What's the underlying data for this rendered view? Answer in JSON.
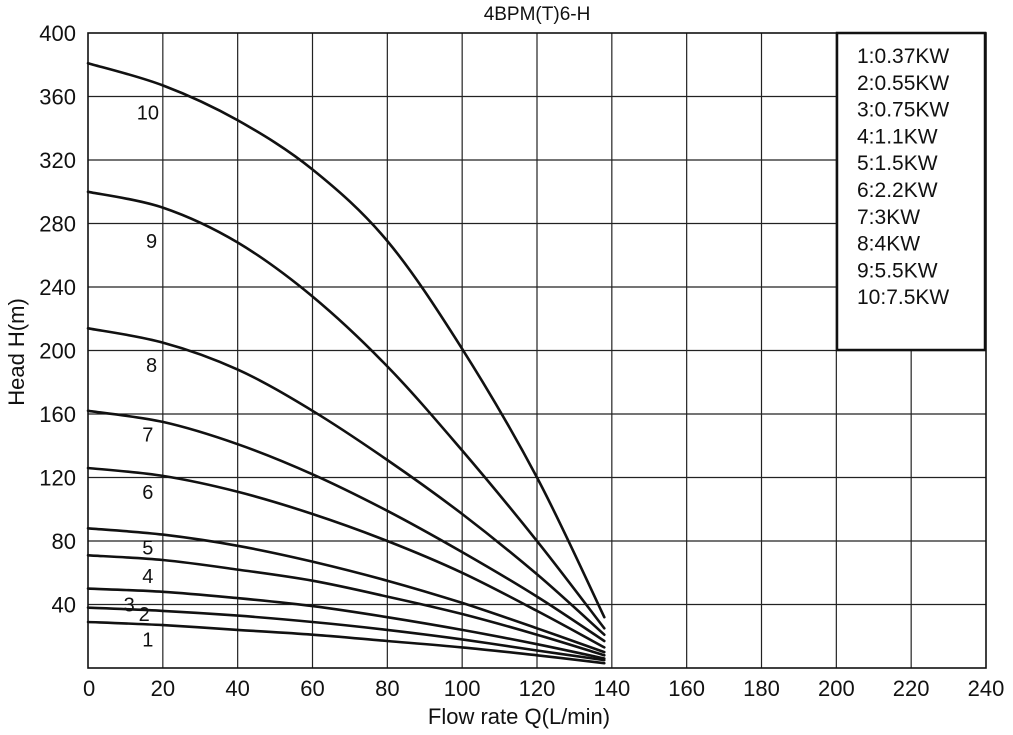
{
  "chart_data": {
    "type": "line",
    "title": "4BPM(T)6-H",
    "xlabel": "Flow rate Q(L/min)",
    "ylabel": "Head H(m)",
    "xlim": [
      0,
      240
    ],
    "ylim": [
      0,
      400
    ],
    "x_ticks": [
      0,
      20,
      40,
      60,
      80,
      100,
      120,
      140,
      160,
      180,
      200,
      220,
      240
    ],
    "y_ticks": [
      40,
      80,
      120,
      160,
      200,
      240,
      280,
      320,
      360,
      400
    ],
    "grid": true,
    "legend_position": "top-right",
    "legend": [
      "1:0.37KW",
      "2:0.55KW",
      "3:0.75KW",
      "4:1.1KW",
      "5:1.5KW",
      "6:2.2KW",
      "7:3KW",
      "8:4KW",
      "9:5.5KW",
      "10:7.5KW"
    ],
    "series": [
      {
        "name": "1",
        "x": [
          0,
          20,
          40,
          60,
          80,
          100,
          120,
          138
        ],
        "y": [
          29,
          27,
          24,
          21,
          17,
          13,
          8,
          3
        ]
      },
      {
        "name": "2",
        "x": [
          0,
          20,
          40,
          60,
          80,
          100,
          120,
          138
        ],
        "y": [
          38,
          36,
          33,
          29,
          24,
          18,
          11,
          5
        ]
      },
      {
        "name": "3",
        "x": [
          0,
          20,
          40,
          60,
          80,
          100,
          120,
          138
        ],
        "y": [
          50,
          48,
          44,
          39,
          32,
          24,
          15,
          6
        ]
      },
      {
        "name": "4",
        "x": [
          0,
          20,
          40,
          60,
          80,
          100,
          120,
          138
        ],
        "y": [
          71,
          68,
          62,
          55,
          45,
          34,
          21,
          8
        ]
      },
      {
        "name": "5",
        "x": [
          0,
          20,
          40,
          60,
          80,
          100,
          120,
          138
        ],
        "y": [
          88,
          84,
          77,
          67,
          55,
          41,
          25,
          10
        ]
      },
      {
        "name": "6",
        "x": [
          0,
          20,
          40,
          60,
          80,
          100,
          120,
          138
        ],
        "y": [
          126,
          121,
          111,
          97,
          80,
          60,
          36,
          13
        ]
      },
      {
        "name": "7",
        "x": [
          0,
          20,
          40,
          60,
          80,
          100,
          120,
          138
        ],
        "y": [
          162,
          155,
          141,
          122,
          99,
          73,
          45,
          17
        ]
      },
      {
        "name": "8",
        "x": [
          0,
          20,
          40,
          60,
          80,
          100,
          120,
          138
        ],
        "y": [
          214,
          205,
          188,
          162,
          131,
          97,
          59,
          21
        ]
      },
      {
        "name": "9",
        "x": [
          0,
          20,
          40,
          60,
          80,
          100,
          120,
          138
        ],
        "y": [
          300,
          290,
          268,
          234,
          190,
          137,
          80,
          25
        ]
      },
      {
        "name": "10",
        "x": [
          0,
          20,
          40,
          60,
          80,
          100,
          120,
          138
        ],
        "y": [
          381,
          367,
          345,
          314,
          269,
          201,
          120,
          32
        ]
      }
    ],
    "curve_labels": [
      {
        "text": "1",
        "x": 16,
        "y": 18
      },
      {
        "text": "2",
        "x": 15,
        "y": 34
      },
      {
        "text": "3",
        "x": 11,
        "y": 40
      },
      {
        "text": "4",
        "x": 16,
        "y": 58
      },
      {
        "text": "5",
        "x": 16,
        "y": 76
      },
      {
        "text": "6",
        "x": 16,
        "y": 111
      },
      {
        "text": "7",
        "x": 16,
        "y": 147
      },
      {
        "text": "8",
        "x": 17,
        "y": 191
      },
      {
        "text": "9",
        "x": 17,
        "y": 269
      },
      {
        "text": "10",
        "x": 16,
        "y": 350
      }
    ]
  }
}
